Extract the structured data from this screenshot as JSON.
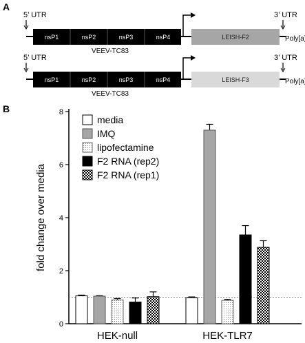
{
  "panel_a": {
    "letter": "A",
    "constructs": [
      {
        "utr5": "5’ UTR",
        "utr3": "3’ UTR",
        "polya": "Poly[a]",
        "nsps": [
          "nsP1",
          "nsP2",
          "nsP3",
          "nsP4"
        ],
        "backbone": "VEEV-TC83",
        "insert": "LEISH-F2",
        "insert_color": "#a6a6a6"
      },
      {
        "utr5": "5’ UTR",
        "utr3": "3’ UTR",
        "polya": "Poly[a]",
        "nsps": [
          "nsP1",
          "nsP2",
          "nsP3",
          "nsP4"
        ],
        "backbone": "VEEV-TC83",
        "insert": "LEISH-F3",
        "insert_color": "#d9d9d9"
      }
    ]
  },
  "panel_b": {
    "letter": "B"
  },
  "chart_data": {
    "type": "bar",
    "categories": [
      "HEK-null",
      "HEK-TLR7"
    ],
    "ylabel": "fold change over media",
    "ylim": [
      0,
      8
    ],
    "yticks": [
      0,
      2,
      4,
      6,
      8
    ],
    "reference_line": 1,
    "legend_position": "top-left",
    "series": [
      {
        "name": "media",
        "values": [
          1.05,
          0.98
        ],
        "errors": [
          0.03,
          0.03
        ],
        "fill": "white"
      },
      {
        "name": "IMQ",
        "values": [
          1.04,
          7.3
        ],
        "errors": [
          0.02,
          0.22
        ],
        "fill": "gray"
      },
      {
        "name": "lipofectamine",
        "values": [
          0.9,
          0.88
        ],
        "errors": [
          0.05,
          0.04
        ],
        "fill": "dotted"
      },
      {
        "name": "F2 RNA (rep2)",
        "values": [
          0.82,
          3.35
        ],
        "errors": [
          0.15,
          0.35
        ],
        "fill": "black"
      },
      {
        "name": "F2 RNA (rep1)",
        "values": [
          1.02,
          2.88
        ],
        "errors": [
          0.18,
          0.25
        ],
        "fill": "checker"
      }
    ]
  }
}
